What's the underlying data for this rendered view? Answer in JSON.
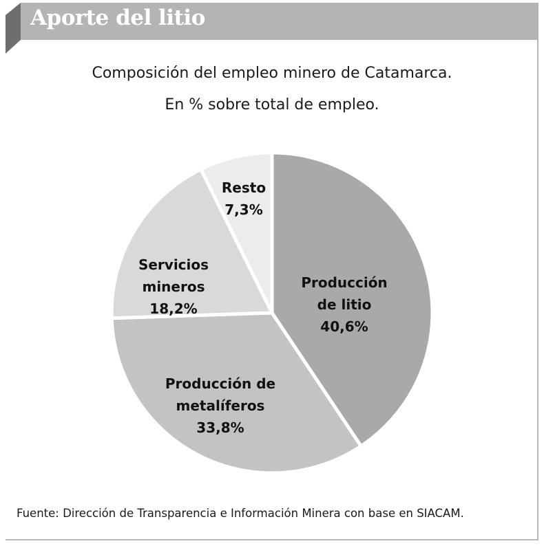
{
  "header": {
    "title": "Aporte del litio"
  },
  "chart_data": {
    "type": "pie",
    "title": "Composición del empleo minero de Catamarca.",
    "subtitle": "En % sobre total de empleo.",
    "slices": [
      {
        "label_lines": [
          "Producción",
          "de litio"
        ],
        "value_label": "40,6%",
        "value": 40.6,
        "color": "#a9a9a9"
      },
      {
        "label_lines": [
          "Producción de",
          "metalíferos"
        ],
        "value_label": "33,8%",
        "value": 33.8,
        "color": "#c3c3c3"
      },
      {
        "label_lines": [
          "Servicios",
          "mineros"
        ],
        "value_label": "18,2%",
        "value": 18.2,
        "color": "#d9d9d9"
      },
      {
        "label_lines": [
          "Resto"
        ],
        "value_label": "7,3%",
        "value": 7.3,
        "color": "#ececec"
      }
    ],
    "start": "top",
    "direction": "clockwise"
  },
  "footer": {
    "source": "Fuente: Dirección de Transparencia e Información Minera con base en SIACAM."
  }
}
